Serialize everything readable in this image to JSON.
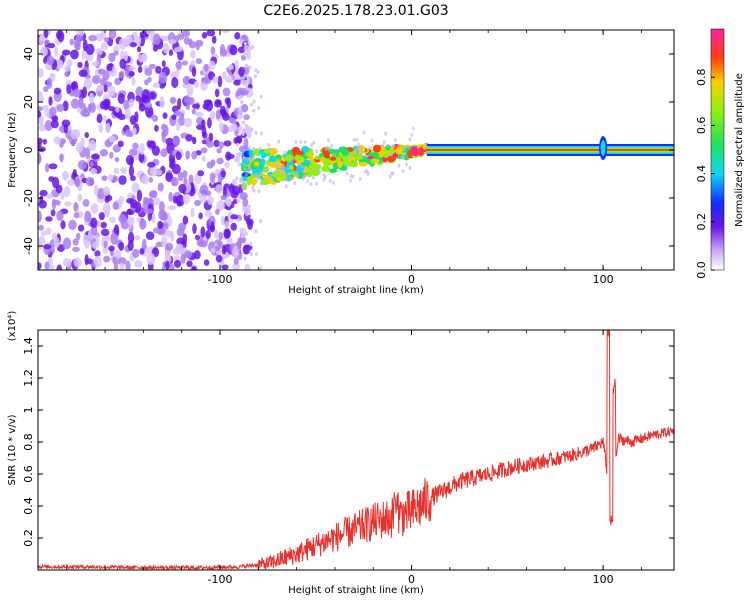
{
  "title": "C2E6.2025.178.23.01.G03",
  "chart_data": [
    {
      "type": "heatmap",
      "xlabel": "Height of straight line (km)",
      "ylabel": "Frequency (Hz)",
      "xlim": [
        -195,
        137
      ],
      "ylim": [
        -50,
        50
      ],
      "xticks": [
        -100,
        0,
        100
      ],
      "yticks": [
        -40,
        -20,
        0,
        20,
        40
      ],
      "colorbar": {
        "label": "Normalized spectral amplitude",
        "range": [
          0.0,
          1.0
        ],
        "ticks": [
          "0.0",
          "0.2",
          "0.4",
          "0.6",
          "0.8"
        ],
        "tick_values": [
          0.0,
          0.2,
          0.4,
          0.6,
          0.8
        ]
      },
      "regions": [
        {
          "x_range": [
            -195,
            -88
          ],
          "description_value": "broadband noise",
          "amplitude": 0.1
        },
        {
          "x_range": [
            -88,
            8
          ],
          "center_freq_start": -8,
          "center_freq_end": 0,
          "amplitude": 0.45
        },
        {
          "x_range": [
            8,
            137
          ],
          "center_freq": 0,
          "amplitude": 0.95
        }
      ]
    },
    {
      "type": "line",
      "xlabel": "Height of straight line (km)",
      "ylabel": "SNR (10 * v/v)",
      "ylabel_multiplier": "(x10⁴)",
      "xlim": [
        -195,
        137
      ],
      "ylim": [
        0,
        1.5
      ],
      "xticks": [
        -100,
        0,
        100
      ],
      "yticks": [
        0.2,
        0.4,
        0.6,
        0.8,
        1.0,
        1.2,
        1.4
      ],
      "series_color": "#e8302c",
      "x": [
        -195,
        -170,
        -140,
        -110,
        -90,
        -75,
        -60,
        -45,
        -30,
        -20,
        -10,
        0,
        10,
        25,
        40,
        55,
        70,
        85,
        95,
        100,
        104,
        108,
        115,
        125,
        137
      ],
      "y": [
        0.02,
        0.02,
        0.015,
        0.015,
        0.02,
        0.04,
        0.1,
        0.18,
        0.25,
        0.3,
        0.33,
        0.36,
        0.45,
        0.55,
        0.6,
        0.65,
        0.68,
        0.72,
        0.76,
        0.8,
        0.45,
        0.82,
        0.8,
        0.84,
        0.87
      ]
    }
  ]
}
